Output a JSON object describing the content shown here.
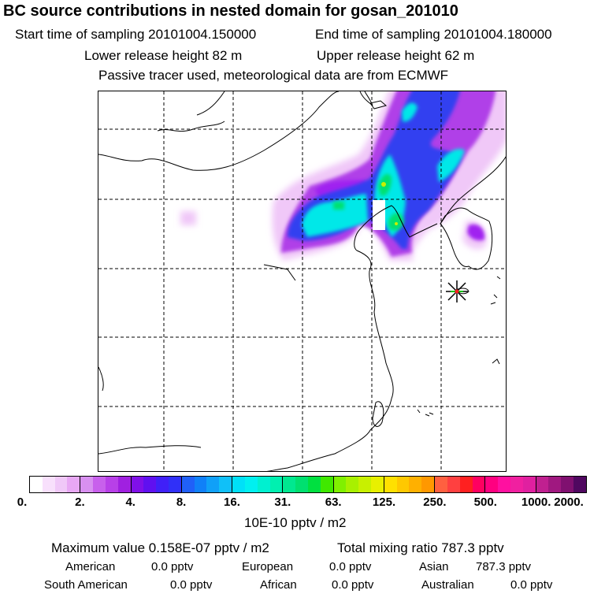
{
  "header": {
    "title": "BC  source contributions in nested domain for gosan_201010",
    "start_time": "Start time of sampling 20101004.150000",
    "end_time": "End time of sampling 20101004.180000",
    "lower_release": "Lower release height   82 m",
    "upper_release": "Upper release height   62 m",
    "note": "Passive tracer used, meteorological data are from ECMWF"
  },
  "map": {
    "receptor_marker": "star-marker",
    "plume_colors": {
      "low": "#f0c8f8",
      "purple": "#a020f0",
      "violet": "#b040e8",
      "blue": "#3040f0",
      "cyan": "#00e8e8",
      "green": "#00e070",
      "yellow": "#c8f000"
    }
  },
  "colorbar": {
    "ticks": [
      "0.",
      "2.",
      "4.",
      "8.",
      "16.",
      "31.",
      "63.",
      "125.",
      "250.",
      "500.",
      "1000.",
      "2000."
    ],
    "segments": [
      [
        "#ffffff",
        "#f8e0fc",
        "#f0c8f8",
        "#e8a8f4"
      ],
      [
        "#d890f0",
        "#c860ec",
        "#b840e8",
        "#a020e0"
      ],
      [
        "#8010e8",
        "#6010f0",
        "#4020f8",
        "#3030f8"
      ],
      [
        "#2060f8",
        "#1080f8",
        "#10a0f8",
        "#10c0f8"
      ],
      [
        "#00e0f8",
        "#00f0f0",
        "#00f0d0",
        "#00f0b0"
      ],
      [
        "#00e890",
        "#00e070",
        "#00e040",
        "#40e800"
      ],
      [
        "#80f000",
        "#a8f000",
        "#c8f000",
        "#e8f000"
      ],
      [
        "#ffe000",
        "#ffc800",
        "#ffb000",
        "#ff9800"
      ],
      [
        "#ff6040",
        "#ff4040",
        "#ff2020",
        "#ff0060"
      ],
      [
        "#ff0080",
        "#ff10a0",
        "#f020a0",
        "#e020a0"
      ],
      [
        "#c02090",
        "#a01880",
        "#801070",
        "#500860"
      ]
    ],
    "unit": "10E-10 pptv / m2"
  },
  "stats": {
    "maximum": "Maximum value  0.158E-07 pptv / m2",
    "total": "Total mixing ratio       787.3 pptv",
    "american_label": "American",
    "american_val": "0.0 pptv",
    "european_label": "European",
    "european_val": "0.0 pptv",
    "asian_label": "Asian",
    "asian_val": "787.3 pptv",
    "south_american_label": "South American",
    "south_american_val": "0.0 pptv",
    "african_label": "African",
    "african_val": "0.0 pptv",
    "australian_label": "Australian",
    "australian_val": "0.0 pptv"
  }
}
